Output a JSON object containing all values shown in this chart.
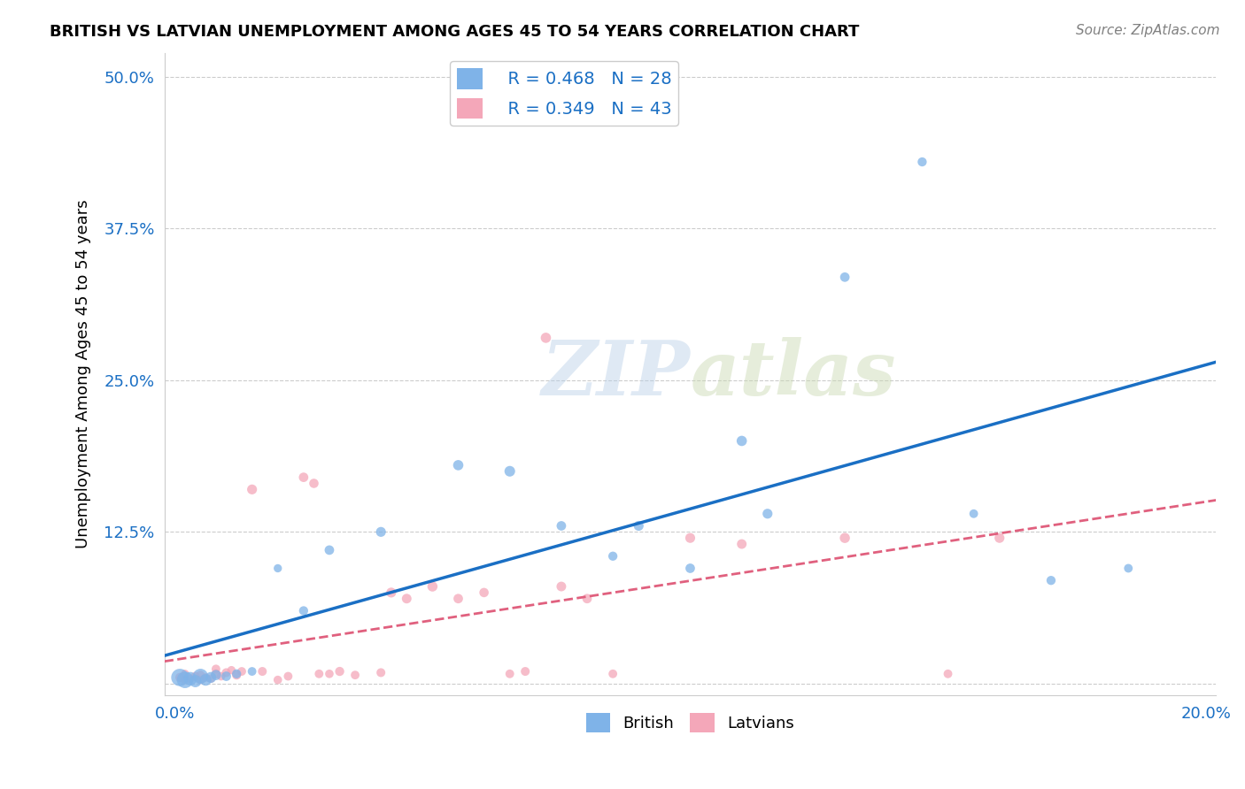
{
  "title": "BRITISH VS LATVIAN UNEMPLOYMENT AMONG AGES 45 TO 54 YEARS CORRELATION CHART",
  "source": "Source: ZipAtlas.com",
  "ylabel": "Unemployment Among Ages 45 to 54 years",
  "xlim": [
    -0.002,
    0.202
  ],
  "ylim": [
    -0.01,
    0.52
  ],
  "xticks": [
    0.0,
    0.05,
    0.1,
    0.15,
    0.2
  ],
  "xticklabels": [
    "0.0%",
    "",
    "",
    "",
    "20.0%"
  ],
  "yticks": [
    0.0,
    0.125,
    0.25,
    0.375,
    0.5
  ],
  "yticklabels": [
    "",
    "12.5%",
    "25.0%",
    "37.5%",
    "50.0%"
  ],
  "british_color": "#7fb3e8",
  "latvian_color": "#f4a7b9",
  "british_line_color": "#1a6fc4",
  "latvian_line_color": "#e0607e",
  "legend_R_british": "R = 0.468",
  "legend_N_british": "N = 28",
  "legend_R_latvian": "R = 0.349",
  "legend_N_latvian": "N = 43",
  "watermark_zip": "ZIP",
  "watermark_atlas": "atlas",
  "british_x": [
    0.001,
    0.002,
    0.003,
    0.004,
    0.005,
    0.006,
    0.007,
    0.008,
    0.01,
    0.012,
    0.015,
    0.02,
    0.025,
    0.03,
    0.04,
    0.055,
    0.065,
    0.075,
    0.085,
    0.09,
    0.1,
    0.11,
    0.115,
    0.13,
    0.145,
    0.155,
    0.17,
    0.185
  ],
  "british_y": [
    0.005,
    0.003,
    0.004,
    0.002,
    0.006,
    0.003,
    0.005,
    0.007,
    0.006,
    0.008,
    0.01,
    0.095,
    0.06,
    0.11,
    0.125,
    0.18,
    0.175,
    0.13,
    0.105,
    0.13,
    0.095,
    0.2,
    0.14,
    0.335,
    0.43,
    0.14,
    0.085,
    0.095
  ],
  "british_s": [
    200,
    180,
    120,
    100,
    150,
    90,
    80,
    70,
    60,
    55,
    50,
    45,
    55,
    60,
    65,
    70,
    75,
    60,
    55,
    65,
    60,
    70,
    65,
    60,
    55,
    50,
    55,
    50
  ],
  "latvian_x": [
    0.001,
    0.002,
    0.002,
    0.003,
    0.004,
    0.005,
    0.005,
    0.006,
    0.007,
    0.008,
    0.008,
    0.009,
    0.01,
    0.011,
    0.012,
    0.013,
    0.015,
    0.017,
    0.02,
    0.022,
    0.025,
    0.027,
    0.028,
    0.03,
    0.032,
    0.035,
    0.04,
    0.042,
    0.045,
    0.05,
    0.055,
    0.06,
    0.065,
    0.068,
    0.072,
    0.075,
    0.08,
    0.085,
    0.1,
    0.11,
    0.13,
    0.15,
    0.16
  ],
  "latvian_y": [
    0.005,
    0.003,
    0.008,
    0.004,
    0.006,
    0.003,
    0.007,
    0.005,
    0.004,
    0.008,
    0.012,
    0.006,
    0.009,
    0.011,
    0.007,
    0.01,
    0.16,
    0.01,
    0.003,
    0.006,
    0.17,
    0.165,
    0.008,
    0.008,
    0.01,
    0.007,
    0.009,
    0.075,
    0.07,
    0.08,
    0.07,
    0.075,
    0.008,
    0.01,
    0.285,
    0.08,
    0.07,
    0.008,
    0.12,
    0.115,
    0.12,
    0.008,
    0.12
  ],
  "latvian_s": [
    55,
    50,
    45,
    48,
    52,
    46,
    50,
    48,
    45,
    55,
    50,
    48,
    52,
    46,
    55,
    50,
    65,
    52,
    48,
    50,
    60,
    58,
    50,
    48,
    55,
    50,
    52,
    65,
    62,
    68,
    60,
    58,
    50,
    52,
    70,
    62,
    60,
    50,
    65,
    62,
    68,
    50,
    65
  ]
}
